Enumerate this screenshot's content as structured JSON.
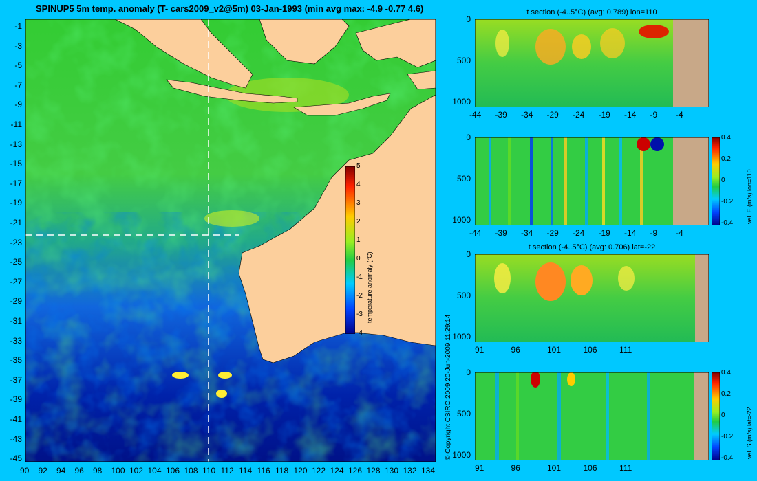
{
  "title": "SPINUP5 5m temp. anomaly (T- cars2009_v2@5m) 03-Jan-1993 (min avg max: -4.9 -0.77 4.6)",
  "copyright": "© Copyright CSIRO 2009   20-Jun-2009 11:29:14",
  "colors": {
    "background": "#00c8ff",
    "land": "#fccf9c",
    "section_land": "#c8a888"
  },
  "chart_data": [
    {
      "type": "heatmap",
      "name": "map",
      "title": "SPINUP5 5m temp. anomaly (T- cars2009_v2@5m) 03-Jan-1993 (min avg max: -4.9 -0.77 4.6)",
      "xlim": [
        90,
        135
      ],
      "ylim": [
        -45,
        0
      ],
      "x_ticks": [
        "90",
        "92",
        "94",
        "96",
        "98",
        "100",
        "102",
        "104",
        "106",
        "108",
        "110",
        "112",
        "114",
        "116",
        "118",
        "120",
        "122",
        "124",
        "126",
        "128",
        "130",
        "132",
        "134"
      ],
      "y_ticks": [
        "-1",
        "-3",
        "-5",
        "-7",
        "-9",
        "-11",
        "-13",
        "-15",
        "-17",
        "-19",
        "-21",
        "-23",
        "-25",
        "-27",
        "-29",
        "-31",
        "-33",
        "-35",
        "-37",
        "-39",
        "-41",
        "-43",
        "-45"
      ],
      "section_lines": {
        "lon": 110,
        "lat": -22
      },
      "colorbar": {
        "label": "temperature anomaly (°C)",
        "ticks": [
          "5",
          "4",
          "3",
          "2",
          "1",
          "0",
          "-1",
          "-2",
          "-3",
          "-4"
        ],
        "range": [
          -4,
          5
        ]
      }
    },
    {
      "type": "heatmap",
      "name": "t-section-lon110",
      "title": "t section (-4..5°C) (avg: 0.789) lon=110",
      "x_ticks": [
        "-44",
        "-39",
        "-34",
        "-29",
        "-24",
        "-19",
        "-14",
        "-9",
        "-4"
      ],
      "y_ticks": [
        "0",
        "500",
        "1000"
      ]
    },
    {
      "type": "heatmap",
      "name": "vel-e-section-lon110",
      "title": "",
      "x_ticks": [
        "-44",
        "-39",
        "-34",
        "-29",
        "-24",
        "-19",
        "-14",
        "-9",
        "-4"
      ],
      "y_ticks": [
        "0",
        "500",
        "1000"
      ],
      "colorbar": {
        "label": "vel. E (m/s) lon=110",
        "ticks": [
          "0.4",
          "0.2",
          "0",
          "-0.2",
          "-0.4"
        ]
      }
    },
    {
      "type": "heatmap",
      "name": "t-section-lat-22",
      "title": "t section (-4..5°C) (avg: 0.706) lat=-22",
      "x_ticks": [
        "91",
        "96",
        "101",
        "106",
        "111"
      ],
      "y_ticks": [
        "0",
        "500",
        "1000"
      ]
    },
    {
      "type": "heatmap",
      "name": "vel-s-section-lat-22",
      "title": "",
      "x_ticks": [
        "91",
        "96",
        "101",
        "106",
        "111"
      ],
      "y_ticks": [
        "0",
        "500",
        "1000"
      ],
      "colorbar": {
        "label": "vel. S (m/s) lat=-22",
        "ticks": [
          "0.4",
          "0.2",
          "0",
          "-0.2",
          "-0.4"
        ]
      }
    }
  ]
}
